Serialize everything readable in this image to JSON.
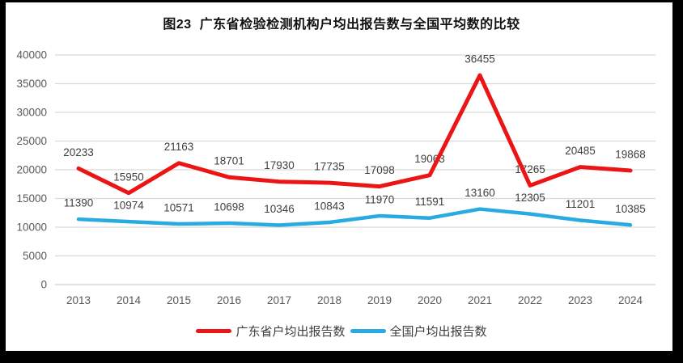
{
  "page": {
    "title": "图23  广东省检验检测机构户均出报告数与全国平均数的比较"
  },
  "chart_data": {
    "type": "line",
    "title": "图23  广东省检验检测机构户均出报告数与全国平均数的比较",
    "categories": [
      "2013",
      "2014",
      "2015",
      "2016",
      "2017",
      "2018",
      "2019",
      "2020",
      "2021",
      "2022",
      "2023",
      "2024"
    ],
    "series": [
      {
        "name": "广东省户均出报告数",
        "color": "#ec1515",
        "values": [
          20233,
          15950,
          21163,
          18701,
          17930,
          17735,
          17098,
          19063,
          36455,
          17265,
          20485,
          19868
        ]
      },
      {
        "name": "全国户均出报告数",
        "color": "#29abe2",
        "values": [
          11390,
          10974,
          10571,
          10698,
          10346,
          10843,
          11970,
          11591,
          13160,
          12305,
          11201,
          10385
        ]
      }
    ],
    "ylim": [
      0,
      40000
    ],
    "ytick_step": 5000,
    "ytick_labels": [
      "0",
      "5000",
      "10000",
      "15000",
      "20000",
      "25000",
      "30000",
      "35000",
      "40000"
    ],
    "grid": true,
    "data_labels": true,
    "legend_position": "bottom",
    "colors": {
      "gridline": "#d9d9d9",
      "axis_text": "#595959",
      "data_label_text": "#3f3f3f"
    }
  }
}
